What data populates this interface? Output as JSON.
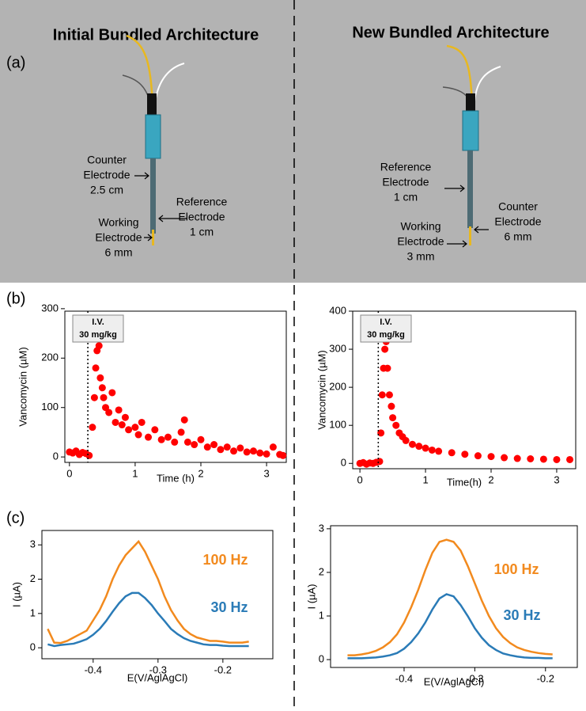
{
  "panel_labels": [
    "(a)",
    "(b)",
    "(c)"
  ],
  "diagram": {
    "left": {
      "title": "Initial Bundled Architecture",
      "labels": [
        [
          "Counter",
          "Electrode",
          "2.5 cm"
        ],
        [
          "Reference",
          "Electrode",
          "1 cm"
        ],
        [
          "Working",
          "Electrode",
          "6 mm"
        ]
      ]
    },
    "right": {
      "title": "New Bundled Architecture",
      "labels": [
        [
          "Reference",
          "Electrode",
          "1 cm"
        ],
        [
          "Counter",
          "Electrode",
          "6 mm"
        ],
        [
          "Working",
          "Electrode",
          "3 mm"
        ]
      ]
    }
  },
  "chart_data": [
    {
      "type": "scatter",
      "x_label": "Time (h)",
      "y_label": "Vancomycin (µM)",
      "color": "#ff0000",
      "xlim": [
        -0.07,
        3.3
      ],
      "ylim": [
        -11,
        295
      ],
      "xticks": [
        0,
        1,
        2,
        3
      ],
      "yticks": [
        0,
        100,
        200,
        300
      ],
      "annotation": {
        "x": 0.28,
        "lines": [
          "I.V.",
          "30 mg/kg"
        ]
      },
      "x": [
        0,
        0.05,
        0.1,
        0.15,
        0.2,
        0.25,
        0.3,
        0.35,
        0.38,
        0.4,
        0.42,
        0.45,
        0.47,
        0.5,
        0.52,
        0.55,
        0.6,
        0.65,
        0.7,
        0.75,
        0.8,
        0.85,
        0.9,
        1.0,
        1.05,
        1.1,
        1.2,
        1.3,
        1.4,
        1.5,
        1.6,
        1.7,
        1.75,
        1.8,
        1.9,
        2.0,
        2.1,
        2.2,
        2.3,
        2.4,
        2.5,
        2.6,
        2.7,
        2.8,
        2.9,
        3.0,
        3.1,
        3.2,
        3.25
      ],
      "values": [
        10,
        8,
        12,
        5,
        9,
        7,
        3,
        60,
        120,
        180,
        215,
        225,
        160,
        140,
        120,
        100,
        90,
        130,
        70,
        95,
        65,
        80,
        55,
        60,
        45,
        70,
        40,
        55,
        35,
        40,
        30,
        50,
        75,
        30,
        25,
        35,
        20,
        25,
        15,
        20,
        12,
        18,
        10,
        12,
        8,
        6,
        20,
        5,
        3
      ]
    },
    {
      "type": "scatter",
      "x_label": "Time(h)",
      "y_label": "Vancomycin (µM)",
      "color": "#ff0000",
      "xlim": [
        -0.11,
        3.29
      ],
      "ylim": [
        -14,
        400
      ],
      "xticks": [
        0,
        1,
        2,
        3
      ],
      "yticks": [
        0,
        100,
        200,
        300,
        400
      ],
      "annotation": {
        "x": 0.28,
        "lines": [
          "I.V.",
          "30 mg/kg"
        ]
      },
      "x": [
        0,
        0.05,
        0.1,
        0.15,
        0.2,
        0.25,
        0.3,
        0.32,
        0.34,
        0.36,
        0.38,
        0.4,
        0.42,
        0.45,
        0.48,
        0.5,
        0.55,
        0.6,
        0.65,
        0.7,
        0.8,
        0.9,
        1.0,
        1.1,
        1.2,
        1.4,
        1.6,
        1.8,
        2.0,
        2.2,
        2.4,
        2.6,
        2.8,
        3.0,
        3.2
      ],
      "values": [
        0,
        2,
        -2,
        1,
        0,
        3,
        5,
        80,
        180,
        250,
        300,
        320,
        250,
        180,
        150,
        120,
        100,
        80,
        70,
        60,
        50,
        45,
        40,
        35,
        32,
        28,
        24,
        20,
        18,
        15,
        13,
        12,
        11,
        10,
        10
      ]
    },
    {
      "type": "line",
      "x_label": "E(V/AglAgCl)",
      "y_label": "I  (µA)",
      "xlim": [
        -0.479,
        -0.123
      ],
      "ylim": [
        -0.32,
        3.42
      ],
      "xticks": [
        -0.4,
        -0.3,
        -0.2
      ],
      "yticks": [
        0,
        1,
        2,
        3
      ],
      "x": [
        -0.47,
        -0.46,
        -0.45,
        -0.44,
        -0.43,
        -0.42,
        -0.41,
        -0.4,
        -0.39,
        -0.38,
        -0.37,
        -0.36,
        -0.35,
        -0.34,
        -0.33,
        -0.32,
        -0.31,
        -0.3,
        -0.29,
        -0.28,
        -0.27,
        -0.26,
        -0.25,
        -0.24,
        -0.23,
        -0.22,
        -0.21,
        -0.2,
        -0.19,
        -0.18,
        -0.17,
        -0.16
      ],
      "series": [
        {
          "name": "100 Hz",
          "color": "#f28a1e",
          "values": [
            0.55,
            0.15,
            0.14,
            0.2,
            0.3,
            0.4,
            0.5,
            0.8,
            1.1,
            1.5,
            2.0,
            2.4,
            2.7,
            2.9,
            3.1,
            2.8,
            2.4,
            2.0,
            1.5,
            1.1,
            0.8,
            0.55,
            0.4,
            0.3,
            0.25,
            0.2,
            0.2,
            0.18,
            0.15,
            0.15,
            0.15,
            0.18
          ]
        },
        {
          "name": "30 Hz",
          "color": "#2a7bb7",
          "values": [
            0.1,
            0.05,
            0.08,
            0.1,
            0.12,
            0.18,
            0.25,
            0.38,
            0.55,
            0.78,
            1.05,
            1.3,
            1.5,
            1.6,
            1.6,
            1.45,
            1.25,
            1.0,
            0.78,
            0.55,
            0.4,
            0.28,
            0.2,
            0.15,
            0.1,
            0.08,
            0.08,
            0.06,
            0.05,
            0.05,
            0.05,
            0.05
          ]
        }
      ]
    },
    {
      "type": "line",
      "x_label": "E(V/AglAgCl)",
      "y_label": "I  (µA)",
      "xlim": [
        -0.504,
        -0.155
      ],
      "ylim": [
        -0.18,
        3.07
      ],
      "xticks": [
        -0.4,
        -0.3,
        -0.2
      ],
      "yticks": [
        0,
        1,
        2,
        3
      ],
      "x": [
        -0.48,
        -0.47,
        -0.46,
        -0.45,
        -0.44,
        -0.43,
        -0.42,
        -0.41,
        -0.4,
        -0.39,
        -0.38,
        -0.37,
        -0.36,
        -0.35,
        -0.34,
        -0.33,
        -0.32,
        -0.31,
        -0.3,
        -0.29,
        -0.28,
        -0.27,
        -0.26,
        -0.25,
        -0.24,
        -0.23,
        -0.22,
        -0.21,
        -0.2,
        -0.19
      ],
      "series": [
        {
          "name": "100 Hz",
          "color": "#f28a1e",
          "values": [
            0.1,
            0.1,
            0.12,
            0.15,
            0.2,
            0.28,
            0.4,
            0.58,
            0.85,
            1.2,
            1.6,
            2.05,
            2.45,
            2.7,
            2.75,
            2.7,
            2.5,
            2.15,
            1.75,
            1.35,
            1.0,
            0.72,
            0.52,
            0.38,
            0.28,
            0.22,
            0.18,
            0.15,
            0.13,
            0.12
          ]
        },
        {
          "name": "30 Hz",
          "color": "#2a7bb7",
          "values": [
            0.03,
            0.03,
            0.03,
            0.04,
            0.05,
            0.07,
            0.1,
            0.15,
            0.25,
            0.4,
            0.6,
            0.85,
            1.15,
            1.4,
            1.5,
            1.45,
            1.25,
            1.0,
            0.72,
            0.5,
            0.33,
            0.22,
            0.14,
            0.1,
            0.07,
            0.05,
            0.04,
            0.04,
            0.03,
            0.03
          ]
        }
      ]
    }
  ]
}
